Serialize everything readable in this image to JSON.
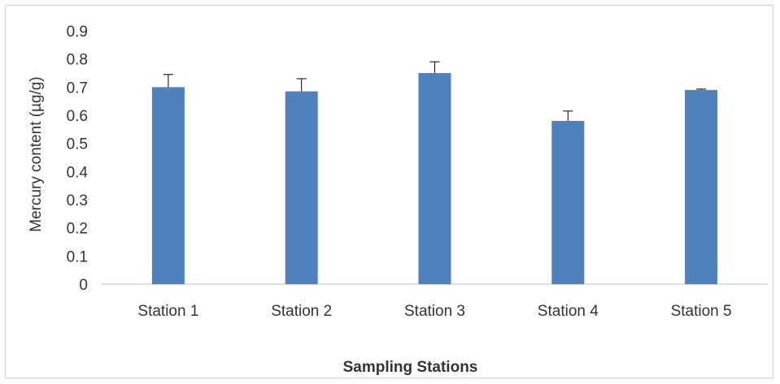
{
  "chart_data": {
    "type": "bar",
    "title": "",
    "xlabel": "Sampling Stations",
    "ylabel": "Mercury content (µg/g)",
    "ylim": [
      0,
      0.9
    ],
    "yticks": [
      "0",
      "0.1",
      "0.2",
      "0.3",
      "0.4",
      "0.5",
      "0.6",
      "0.7",
      "0.8",
      "0.9"
    ],
    "categories": [
      "Station 1",
      "Station 2",
      "Station 3",
      "Station 4",
      "Station 5"
    ],
    "values": [
      0.7,
      0.685,
      0.75,
      0.58,
      0.69
    ],
    "error_upper": [
      0.045,
      0.045,
      0.04,
      0.035,
      0.003
    ],
    "grid": false,
    "legend": "none",
    "bar_color": "#4f81bd",
    "axis_color": "#bfbfbf"
  }
}
